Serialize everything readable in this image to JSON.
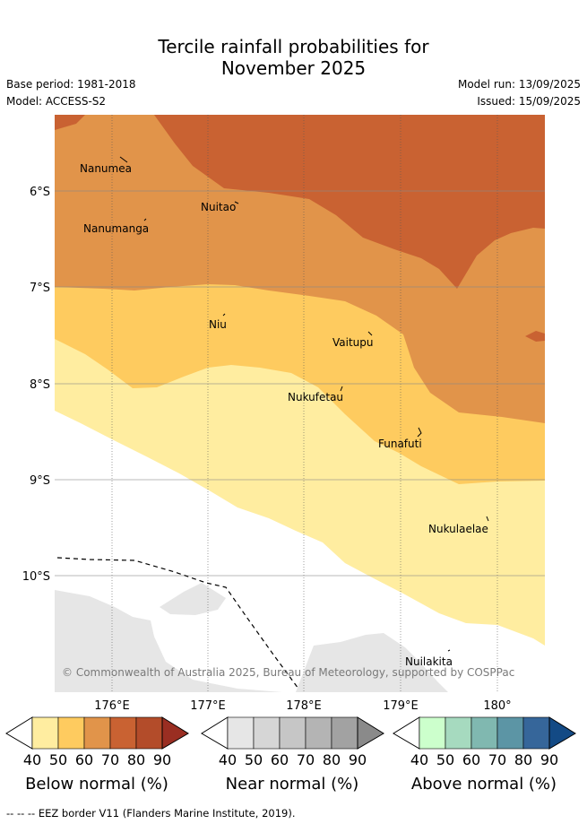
{
  "title_line1": "Tercile rainfall probabilities for",
  "title_line2": "November 2025",
  "base_period": "Base period: 1981-2018",
  "model": "Model: ACCESS-S2",
  "model_run": "Model run: 13/09/2025",
  "issued": "Issued: 15/09/2025",
  "lat_ticks": [
    "6°S",
    "7°S",
    "8°S",
    "9°S",
    "10°S"
  ],
  "lon_ticks": [
    "176°E",
    "177°E",
    "178°E",
    "179°E",
    "180°"
  ],
  "islands": [
    "Nanumea",
    "Nuitao",
    "Nanumanga",
    "Niu",
    "Vaitupu",
    "Nukufetau",
    "Funafuti",
    "Nukulaelae",
    "Nuilakita"
  ],
  "credit": "© Commonwealth of Australia 2025, Bureau of Meteorology, supported by COSPPac",
  "colorbars": {
    "below": {
      "title": "Below normal (%)",
      "ticks": [
        "40",
        "50",
        "60",
        "70",
        "80",
        "90"
      ],
      "colors": [
        "#ffeda0",
        "#fecb5f",
        "#e1944a",
        "#c96232",
        "#b34c2a",
        "#9a2e22"
      ]
    },
    "near": {
      "title": "Near normal (%)",
      "ticks": [
        "40",
        "50",
        "60",
        "70",
        "80",
        "90"
      ],
      "colors": [
        "#e6e6e6",
        "#d6d6d6",
        "#c6c6c6",
        "#b4b4b4",
        "#a2a2a2",
        "#8a8a8a"
      ]
    },
    "above": {
      "title": "Above normal (%)",
      "ticks": [
        "40",
        "50",
        "60",
        "70",
        "80",
        "90"
      ],
      "colors": [
        "#ccffcc",
        "#a6dabf",
        "#80b8b0",
        "#5c95a5",
        "#36669a",
        "#134a85"
      ]
    }
  },
  "eez_legend": "--  --  -- EEZ border V11 (Flanders Marine Institute, 2019).",
  "colors": {
    "below_70": "#c96232",
    "below_60": "#e1944a",
    "below_50": "#fecb5f",
    "below_40": "#ffeda0",
    "near_40": "#e6e6e6"
  }
}
